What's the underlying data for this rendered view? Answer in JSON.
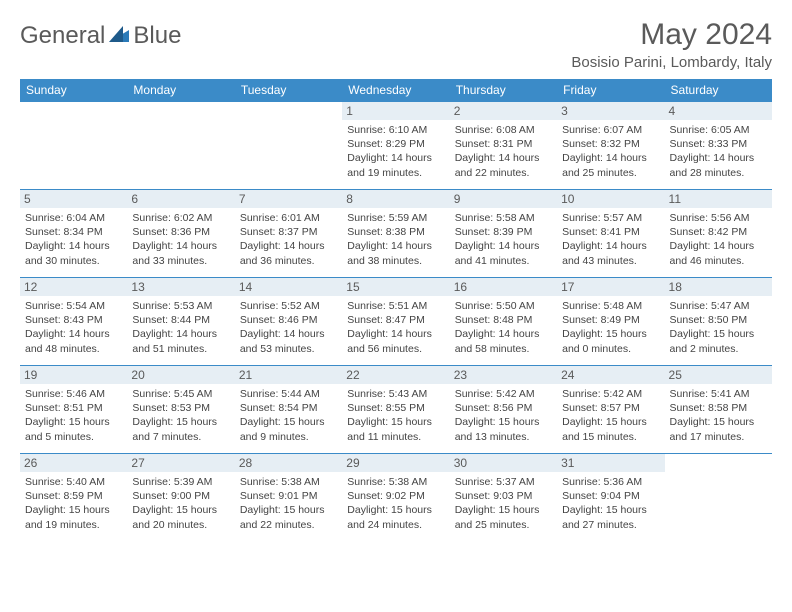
{
  "logo": {
    "text1": "General",
    "text2": "Blue"
  },
  "title": "May 2024",
  "location": "Bosisio Parini, Lombardy, Italy",
  "colors": {
    "header_bg": "#3b8bc8",
    "header_fg": "#ffffff",
    "daynum_bg": "#e6eef4",
    "text": "#5a5a5a",
    "row_border": "#3b8bc8"
  },
  "day_headers": [
    "Sunday",
    "Monday",
    "Tuesday",
    "Wednesday",
    "Thursday",
    "Friday",
    "Saturday"
  ],
  "weeks": [
    [
      {
        "empty": true
      },
      {
        "empty": true
      },
      {
        "empty": true
      },
      {
        "n": "1",
        "sr": "Sunrise: 6:10 AM",
        "ss": "Sunset: 8:29 PM",
        "d1": "Daylight: 14 hours",
        "d2": "and 19 minutes."
      },
      {
        "n": "2",
        "sr": "Sunrise: 6:08 AM",
        "ss": "Sunset: 8:31 PM",
        "d1": "Daylight: 14 hours",
        "d2": "and 22 minutes."
      },
      {
        "n": "3",
        "sr": "Sunrise: 6:07 AM",
        "ss": "Sunset: 8:32 PM",
        "d1": "Daylight: 14 hours",
        "d2": "and 25 minutes."
      },
      {
        "n": "4",
        "sr": "Sunrise: 6:05 AM",
        "ss": "Sunset: 8:33 PM",
        "d1": "Daylight: 14 hours",
        "d2": "and 28 minutes."
      }
    ],
    [
      {
        "n": "5",
        "sr": "Sunrise: 6:04 AM",
        "ss": "Sunset: 8:34 PM",
        "d1": "Daylight: 14 hours",
        "d2": "and 30 minutes."
      },
      {
        "n": "6",
        "sr": "Sunrise: 6:02 AM",
        "ss": "Sunset: 8:36 PM",
        "d1": "Daylight: 14 hours",
        "d2": "and 33 minutes."
      },
      {
        "n": "7",
        "sr": "Sunrise: 6:01 AM",
        "ss": "Sunset: 8:37 PM",
        "d1": "Daylight: 14 hours",
        "d2": "and 36 minutes."
      },
      {
        "n": "8",
        "sr": "Sunrise: 5:59 AM",
        "ss": "Sunset: 8:38 PM",
        "d1": "Daylight: 14 hours",
        "d2": "and 38 minutes."
      },
      {
        "n": "9",
        "sr": "Sunrise: 5:58 AM",
        "ss": "Sunset: 8:39 PM",
        "d1": "Daylight: 14 hours",
        "d2": "and 41 minutes."
      },
      {
        "n": "10",
        "sr": "Sunrise: 5:57 AM",
        "ss": "Sunset: 8:41 PM",
        "d1": "Daylight: 14 hours",
        "d2": "and 43 minutes."
      },
      {
        "n": "11",
        "sr": "Sunrise: 5:56 AM",
        "ss": "Sunset: 8:42 PM",
        "d1": "Daylight: 14 hours",
        "d2": "and 46 minutes."
      }
    ],
    [
      {
        "n": "12",
        "sr": "Sunrise: 5:54 AM",
        "ss": "Sunset: 8:43 PM",
        "d1": "Daylight: 14 hours",
        "d2": "and 48 minutes."
      },
      {
        "n": "13",
        "sr": "Sunrise: 5:53 AM",
        "ss": "Sunset: 8:44 PM",
        "d1": "Daylight: 14 hours",
        "d2": "and 51 minutes."
      },
      {
        "n": "14",
        "sr": "Sunrise: 5:52 AM",
        "ss": "Sunset: 8:46 PM",
        "d1": "Daylight: 14 hours",
        "d2": "and 53 minutes."
      },
      {
        "n": "15",
        "sr": "Sunrise: 5:51 AM",
        "ss": "Sunset: 8:47 PM",
        "d1": "Daylight: 14 hours",
        "d2": "and 56 minutes."
      },
      {
        "n": "16",
        "sr": "Sunrise: 5:50 AM",
        "ss": "Sunset: 8:48 PM",
        "d1": "Daylight: 14 hours",
        "d2": "and 58 minutes."
      },
      {
        "n": "17",
        "sr": "Sunrise: 5:48 AM",
        "ss": "Sunset: 8:49 PM",
        "d1": "Daylight: 15 hours",
        "d2": "and 0 minutes."
      },
      {
        "n": "18",
        "sr": "Sunrise: 5:47 AM",
        "ss": "Sunset: 8:50 PM",
        "d1": "Daylight: 15 hours",
        "d2": "and 2 minutes."
      }
    ],
    [
      {
        "n": "19",
        "sr": "Sunrise: 5:46 AM",
        "ss": "Sunset: 8:51 PM",
        "d1": "Daylight: 15 hours",
        "d2": "and 5 minutes."
      },
      {
        "n": "20",
        "sr": "Sunrise: 5:45 AM",
        "ss": "Sunset: 8:53 PM",
        "d1": "Daylight: 15 hours",
        "d2": "and 7 minutes."
      },
      {
        "n": "21",
        "sr": "Sunrise: 5:44 AM",
        "ss": "Sunset: 8:54 PM",
        "d1": "Daylight: 15 hours",
        "d2": "and 9 minutes."
      },
      {
        "n": "22",
        "sr": "Sunrise: 5:43 AM",
        "ss": "Sunset: 8:55 PM",
        "d1": "Daylight: 15 hours",
        "d2": "and 11 minutes."
      },
      {
        "n": "23",
        "sr": "Sunrise: 5:42 AM",
        "ss": "Sunset: 8:56 PM",
        "d1": "Daylight: 15 hours",
        "d2": "and 13 minutes."
      },
      {
        "n": "24",
        "sr": "Sunrise: 5:42 AM",
        "ss": "Sunset: 8:57 PM",
        "d1": "Daylight: 15 hours",
        "d2": "and 15 minutes."
      },
      {
        "n": "25",
        "sr": "Sunrise: 5:41 AM",
        "ss": "Sunset: 8:58 PM",
        "d1": "Daylight: 15 hours",
        "d2": "and 17 minutes."
      }
    ],
    [
      {
        "n": "26",
        "sr": "Sunrise: 5:40 AM",
        "ss": "Sunset: 8:59 PM",
        "d1": "Daylight: 15 hours",
        "d2": "and 19 minutes."
      },
      {
        "n": "27",
        "sr": "Sunrise: 5:39 AM",
        "ss": "Sunset: 9:00 PM",
        "d1": "Daylight: 15 hours",
        "d2": "and 20 minutes."
      },
      {
        "n": "28",
        "sr": "Sunrise: 5:38 AM",
        "ss": "Sunset: 9:01 PM",
        "d1": "Daylight: 15 hours",
        "d2": "and 22 minutes."
      },
      {
        "n": "29",
        "sr": "Sunrise: 5:38 AM",
        "ss": "Sunset: 9:02 PM",
        "d1": "Daylight: 15 hours",
        "d2": "and 24 minutes."
      },
      {
        "n": "30",
        "sr": "Sunrise: 5:37 AM",
        "ss": "Sunset: 9:03 PM",
        "d1": "Daylight: 15 hours",
        "d2": "and 25 minutes."
      },
      {
        "n": "31",
        "sr": "Sunrise: 5:36 AM",
        "ss": "Sunset: 9:04 PM",
        "d1": "Daylight: 15 hours",
        "d2": "and 27 minutes."
      },
      {
        "empty": true
      }
    ]
  ]
}
